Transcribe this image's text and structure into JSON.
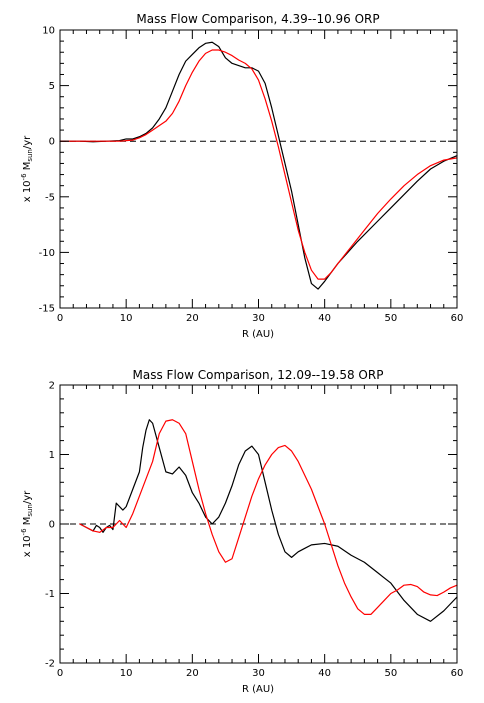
{
  "chart_data": [
    {
      "type": "line",
      "title": "Mass Flow Comparison,  4.39--10.96 ORP",
      "xlabel": "R (AU)",
      "ylabel": "x 10⁻⁶ Msun/yr",
      "ylabel_parts": {
        "prefix": "x 10",
        "exponent": "-6",
        "mid": " M",
        "subscript": "sun",
        "suffix": "/yr"
      },
      "xlim": [
        0,
        60
      ],
      "ylim": [
        -15,
        10
      ],
      "xticks": [
        0,
        10,
        20,
        30,
        40,
        50,
        60
      ],
      "yticks": [
        -15,
        -10,
        -5,
        0,
        5,
        10
      ],
      "x_minor_step": 2,
      "y_minor_step": 1,
      "zero_line": "dashed",
      "colors": {
        "black_series": "#000000",
        "red_series": "#ff0000"
      },
      "series": [
        {
          "color": "#000000",
          "points": [
            [
              0,
              0
            ],
            [
              3,
              0
            ],
            [
              5,
              -0.05
            ],
            [
              7,
              0
            ],
            [
              9,
              0.05
            ],
            [
              10,
              0.2
            ],
            [
              11,
              0.2
            ],
            [
              12,
              0.4
            ],
            [
              13,
              0.7
            ],
            [
              14,
              1.2
            ],
            [
              15,
              2
            ],
            [
              16,
              3
            ],
            [
              17,
              4.5
            ],
            [
              18,
              6
            ],
            [
              19,
              7.2
            ],
            [
              20,
              7.8
            ],
            [
              21,
              8.4
            ],
            [
              22,
              8.8
            ],
            [
              23,
              8.9
            ],
            [
              24,
              8.5
            ],
            [
              25,
              7.5
            ],
            [
              26,
              7
            ],
            [
              27,
              6.8
            ],
            [
              28,
              6.6
            ],
            [
              29,
              6.6
            ],
            [
              30,
              6.3
            ],
            [
              31,
              5.2
            ],
            [
              32,
              3
            ],
            [
              33,
              0.5
            ],
            [
              34,
              -2
            ],
            [
              35,
              -4.5
            ],
            [
              36,
              -7.5
            ],
            [
              37,
              -10.5
            ],
            [
              38,
              -12.8
            ],
            [
              39,
              -13.3
            ],
            [
              40,
              -12.6
            ],
            [
              41,
              -11.8
            ],
            [
              42,
              -11
            ],
            [
              45,
              -9
            ],
            [
              48,
              -7.2
            ],
            [
              50,
              -6
            ],
            [
              52,
              -4.8
            ],
            [
              54,
              -3.6
            ],
            [
              56,
              -2.5
            ],
            [
              58,
              -1.8
            ],
            [
              60,
              -1.3
            ]
          ]
        },
        {
          "color": "#ff0000",
          "points": [
            [
              0,
              0
            ],
            [
              5,
              0
            ],
            [
              9,
              0
            ],
            [
              11,
              0.1
            ],
            [
              12,
              0.3
            ],
            [
              13,
              0.6
            ],
            [
              14,
              1
            ],
            [
              16,
              1.8
            ],
            [
              17,
              2.5
            ],
            [
              18,
              3.6
            ],
            [
              19,
              5
            ],
            [
              20,
              6.2
            ],
            [
              21,
              7.2
            ],
            [
              22,
              7.9
            ],
            [
              23,
              8.2
            ],
            [
              24,
              8.2
            ],
            [
              25,
              8
            ],
            [
              26,
              7.7
            ],
            [
              27,
              7.3
            ],
            [
              28,
              7
            ],
            [
              29,
              6.5
            ],
            [
              30,
              5.5
            ],
            [
              31,
              3.8
            ],
            [
              32,
              1.8
            ],
            [
              33,
              -0.5
            ],
            [
              34,
              -3
            ],
            [
              35,
              -5.5
            ],
            [
              36,
              -8
            ],
            [
              37,
              -10
            ],
            [
              38,
              -11.6
            ],
            [
              39,
              -12.4
            ],
            [
              40,
              -12.4
            ],
            [
              41,
              -11.8
            ],
            [
              42,
              -11
            ],
            [
              44,
              -9.5
            ],
            [
              46,
              -8
            ],
            [
              48,
              -6.5
            ],
            [
              50,
              -5.2
            ],
            [
              52,
              -4
            ],
            [
              54,
              -3
            ],
            [
              56,
              -2.2
            ],
            [
              58,
              -1.7
            ],
            [
              60,
              -1.5
            ]
          ]
        }
      ]
    },
    {
      "type": "line",
      "title": "Mass Flow Comparison, 12.09--19.58 ORP",
      "xlabel": "R (AU)",
      "ylabel": "x 10⁻⁶ Msun/yr",
      "ylabel_parts": {
        "prefix": "x 10",
        "exponent": "-6",
        "mid": " M",
        "subscript": "sun",
        "suffix": "/yr"
      },
      "xlim": [
        0,
        60
      ],
      "ylim": [
        -2,
        2
      ],
      "xticks": [
        0,
        10,
        20,
        30,
        40,
        50,
        60
      ],
      "yticks": [
        -2,
        -1,
        0,
        1,
        2
      ],
      "x_minor_step": 2,
      "y_minor_step": 0.2,
      "zero_line": "dashed",
      "colors": {
        "black_series": "#000000",
        "red_series": "#ff0000"
      },
      "series": [
        {
          "color": "#000000",
          "points": [
            [
              3,
              0
            ],
            [
              4,
              -0.05
            ],
            [
              5,
              -0.1
            ],
            [
              5.5,
              -0.02
            ],
            [
              6,
              -0.05
            ],
            [
              6.5,
              -0.12
            ],
            [
              7,
              -0.05
            ],
            [
              7.5,
              -0.02
            ],
            [
              8,
              -0.08
            ],
            [
              8.5,
              0.3
            ],
            [
              9,
              0.25
            ],
            [
              9.5,
              0.2
            ],
            [
              10,
              0.25
            ],
            [
              11,
              0.5
            ],
            [
              12,
              0.75
            ],
            [
              12.5,
              1.1
            ],
            [
              13,
              1.35
            ],
            [
              13.5,
              1.5
            ],
            [
              14,
              1.45
            ],
            [
              15,
              1.1
            ],
            [
              16,
              0.75
            ],
            [
              17,
              0.72
            ],
            [
              18,
              0.82
            ],
            [
              19,
              0.7
            ],
            [
              20,
              0.45
            ],
            [
              21,
              0.3
            ],
            [
              22,
              0.1
            ],
            [
              23,
              0
            ],
            [
              24,
              0.1
            ],
            [
              25,
              0.3
            ],
            [
              26,
              0.55
            ],
            [
              27,
              0.85
            ],
            [
              28,
              1.05
            ],
            [
              29,
              1.12
            ],
            [
              30,
              1
            ],
            [
              31,
              0.6
            ],
            [
              32,
              0.2
            ],
            [
              33,
              -0.15
            ],
            [
              34,
              -0.4
            ],
            [
              35,
              -0.48
            ],
            [
              36,
              -0.4
            ],
            [
              37,
              -0.35
            ],
            [
              38,
              -0.3
            ],
            [
              40,
              -0.28
            ],
            [
              42,
              -0.32
            ],
            [
              44,
              -0.45
            ],
            [
              46,
              -0.55
            ],
            [
              48,
              -0.7
            ],
            [
              50,
              -0.85
            ],
            [
              52,
              -1.1
            ],
            [
              54,
              -1.3
            ],
            [
              56,
              -1.4
            ],
            [
              58,
              -1.25
            ],
            [
              60,
              -1.05
            ]
          ]
        },
        {
          "color": "#ff0000",
          "points": [
            [
              3,
              0
            ],
            [
              4,
              -0.05
            ],
            [
              5,
              -0.1
            ],
            [
              6,
              -0.12
            ],
            [
              7,
              -0.05
            ],
            [
              8,
              -0.05
            ],
            [
              9,
              0.05
            ],
            [
              10,
              -0.05
            ],
            [
              11,
              0.15
            ],
            [
              12,
              0.4
            ],
            [
              13,
              0.65
            ],
            [
              14,
              0.9
            ],
            [
              15,
              1.3
            ],
            [
              16,
              1.48
            ],
            [
              17,
              1.5
            ],
            [
              18,
              1.45
            ],
            [
              19,
              1.3
            ],
            [
              20,
              0.9
            ],
            [
              21,
              0.5
            ],
            [
              22,
              0.15
            ],
            [
              23,
              -0.15
            ],
            [
              24,
              -0.4
            ],
            [
              25,
              -0.55
            ],
            [
              26,
              -0.5
            ],
            [
              27,
              -0.2
            ],
            [
              28,
              0.1
            ],
            [
              29,
              0.4
            ],
            [
              30,
              0.65
            ],
            [
              31,
              0.85
            ],
            [
              32,
              1
            ],
            [
              33,
              1.1
            ],
            [
              34,
              1.13
            ],
            [
              35,
              1.05
            ],
            [
              36,
              0.9
            ],
            [
              37,
              0.7
            ],
            [
              38,
              0.5
            ],
            [
              39,
              0.25
            ],
            [
              40,
              0
            ],
            [
              41,
              -0.3
            ],
            [
              42,
              -0.6
            ],
            [
              43,
              -0.85
            ],
            [
              44,
              -1.05
            ],
            [
              45,
              -1.22
            ],
            [
              46,
              -1.3
            ],
            [
              47,
              -1.3
            ],
            [
              48,
              -1.2
            ],
            [
              49,
              -1.1
            ],
            [
              50,
              -1
            ],
            [
              51,
              -0.95
            ],
            [
              52,
              -0.88
            ],
            [
              53,
              -0.87
            ],
            [
              54,
              -0.9
            ],
            [
              55,
              -0.98
            ],
            [
              56,
              -1.02
            ],
            [
              57,
              -1.03
            ],
            [
              58,
              -0.98
            ],
            [
              59,
              -0.92
            ],
            [
              60,
              -0.88
            ]
          ]
        }
      ]
    }
  ]
}
